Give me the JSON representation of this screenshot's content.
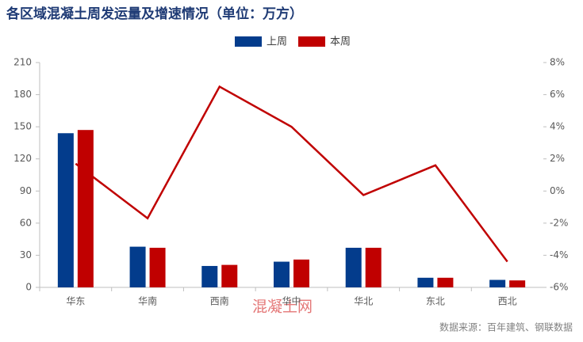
{
  "chart_data": {
    "type": "bar",
    "title": "各区域混凝土周发运量及增速情况（单位：万方）",
    "categories": [
      "华东",
      "华南",
      "西南",
      "华中",
      "华北",
      "东北",
      "西北"
    ],
    "series": [
      {
        "name": "上周",
        "color": "#033c8c",
        "values": [
          144,
          38,
          20,
          24,
          37,
          9,
          7
        ]
      },
      {
        "name": "本周",
        "color": "#c00000",
        "values": [
          147,
          37,
          21,
          26,
          37,
          9,
          6.5
        ]
      },
      {
        "type": "line",
        "axis": "y2",
        "color": "#c00000",
        "values": [
          1.7,
          -1.7,
          6.5,
          4.0,
          -0.25,
          1.6,
          -4.4
        ]
      }
    ],
    "ylim": [
      0,
      210
    ],
    "yticks": [
      0,
      30,
      60,
      90,
      120,
      150,
      180,
      210
    ],
    "y2lim": [
      -6,
      8
    ],
    "y2ticks": [
      {
        "value": -6,
        "label": "-6%"
      },
      {
        "value": -4,
        "label": "-4%"
      },
      {
        "value": -2,
        "label": "-2%"
      },
      {
        "value": 0,
        "label": "0%"
      },
      {
        "value": 2,
        "label": "2%"
      },
      {
        "value": 4,
        "label": "4%"
      },
      {
        "value": 6,
        "label": "6%"
      },
      {
        "value": 8,
        "label": "8%"
      }
    ],
    "legend": "top",
    "watermark": "混凝土网",
    "source": "数据来源：百年建筑、钢联数据"
  }
}
